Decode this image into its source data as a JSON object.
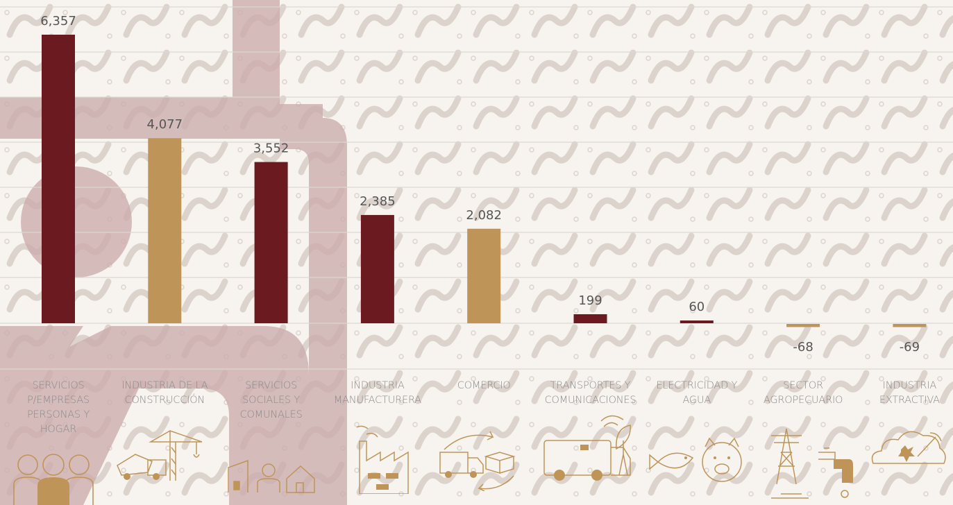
{
  "chart_data": {
    "type": "bar",
    "categories": [
      "SERVICIOS P/EMPRESAS PERSONAS Y HOGAR",
      "INDUSTRIA DE LA CONSTRUCCIÓN",
      "SERVICIOS SOCIALES Y COMUNALES",
      "INDUSTRIA MANUFACTURERA",
      "COMERCIO",
      "TRANSPORTES Y COMUNICACIONES",
      "ELECTRICIDAD Y AGUA",
      "SECTOR AGROPECUARIO",
      "INDUSTRIA EXTRACTIVA"
    ],
    "values": [
      6357,
      4077,
      3552,
      2385,
      2082,
      199,
      60,
      -68,
      -69
    ],
    "value_labels": [
      "6,357",
      "4,077",
      "3,552",
      "2,385",
      "2,082",
      "199",
      "60",
      "-68",
      "-69"
    ],
    "bar_colors": [
      "#6b1a1f",
      "#bf9458",
      "#6b1a1f",
      "#6b1a1f",
      "#bf9458",
      "#6b1a1f",
      "#6b1a1f",
      "#bf9458",
      "#bf9458"
    ],
    "grid": true,
    "legend": "none",
    "title": "",
    "xlabel": "",
    "ylabel": ""
  },
  "category_lines": [
    [
      "SERVICIOS",
      "P/EMPRESAS",
      "PERSONAS Y",
      "HOGAR"
    ],
    [
      "INDUSTRIA DE LA",
      "CONSTRUCCIÓN"
    ],
    [
      "SERVICIOS",
      "SOCIALES Y",
      "COMUNALES"
    ],
    [
      "INDUSTRIA",
      "MANUFACTURERA"
    ],
    [
      "COMERCIO"
    ],
    [
      "TRANSPORTES Y",
      "COMUNICACIONES"
    ],
    [
      "ELECTRICIDAD Y",
      "AGUA"
    ],
    [
      "SECTOR",
      "AGROPECUARIO"
    ],
    [
      "INDUSTRIA",
      "EXTRACTIVA"
    ]
  ],
  "icons": [
    "people-icon",
    "construction-crane-icon",
    "buildings-people-icon",
    "factory-icon",
    "delivery-truck-boxes-icon",
    "van-satellite-icon",
    "fish-pig-icon",
    "power-tower-faucet-icon",
    "mining-cloud-icon"
  ],
  "colors": {
    "maroon": "#6b1a1f",
    "gold": "#bf9458",
    "grid": "#dcd7d3",
    "background": "#f7f4f0",
    "watermark": "#c9a9a8"
  }
}
